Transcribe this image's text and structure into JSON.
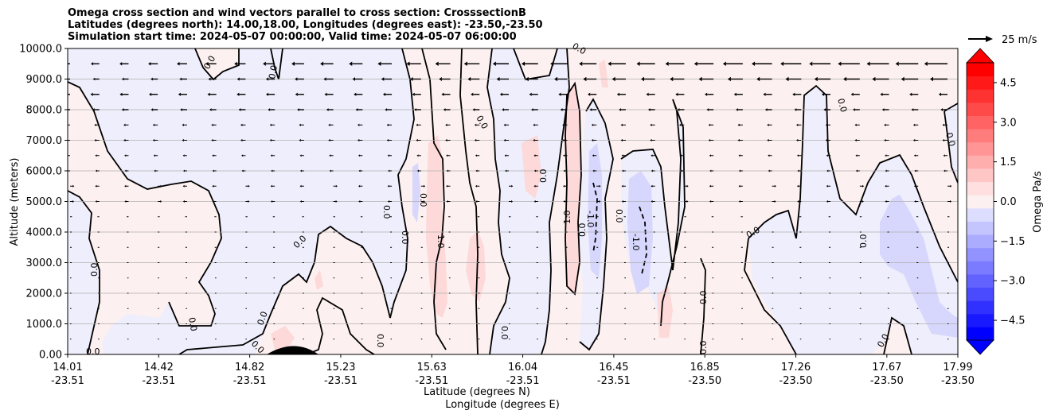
{
  "chart_data": {
    "type": "heatmap",
    "title_lines": [
      "Omega cross section and wind vectors parallel to cross section: CrosssectionB",
      "Latitudes (degrees north): 14.00,18.00, Longitudes (degrees east): -23.50,-23.50",
      "Simulation start time: 2024-05-07 00:00:00, Valid time: 2024-05-07 06:00:00"
    ],
    "ylabel": "Altitude (meters)",
    "xlabel_lat": "Latitude (degrees N)",
    "xlabel_lon": "Longitude (degrees E)",
    "ylim": [
      0,
      10000
    ],
    "yticks": [
      "0.00",
      "1000.0",
      "2000.0",
      "3000.0",
      "4000.0",
      "5000.0",
      "6000.0",
      "7000.0",
      "8000.0",
      "9000.0",
      "10000.0"
    ],
    "ytick_values": [
      0,
      1000,
      2000,
      3000,
      4000,
      5000,
      6000,
      7000,
      8000,
      9000,
      10000
    ],
    "xticks": [
      {
        "lat": "14.01",
        "lon": "-23.51"
      },
      {
        "lat": "14.42",
        "lon": "-23.51"
      },
      {
        "lat": "14.82",
        "lon": "-23.51"
      },
      {
        "lat": "15.23",
        "lon": "-23.51"
      },
      {
        "lat": "15.63",
        "lon": "-23.51"
      },
      {
        "lat": "16.04",
        "lon": "-23.51"
      },
      {
        "lat": "16.45",
        "lon": "-23.51"
      },
      {
        "lat": "16.85",
        "lon": "-23.50"
      },
      {
        "lat": "17.26",
        "lon": "-23.50"
      },
      {
        "lat": "17.67",
        "lon": "-23.50"
      },
      {
        "lat": "17.99",
        "lon": "-23.50"
      }
    ],
    "colorbar": {
      "label": "Omega Pa/s",
      "range": [
        -5.25,
        5.25
      ],
      "ticks": [
        "4.5",
        "3.0",
        "1.5",
        "0.0",
        "−1.5",
        "−3.0",
        "−4.5"
      ],
      "tick_values": [
        4.5,
        3.0,
        1.5,
        0.0,
        -1.5,
        -3.0,
        -4.5
      ],
      "extend": "both"
    },
    "vector_key": {
      "label": "25 m/s"
    },
    "contour_labels": [
      "0.0",
      "1.0",
      "-1.0"
    ],
    "grid": "horizontal",
    "colors": {
      "positive_light": "#fdf0f0",
      "negative_light": "#eeeefc",
      "positive_mid": "#fdd9d9",
      "negative_mid": "#d7d7fd",
      "pos_max": "#ff0000",
      "neg_max": "#0000ff",
      "terrain": "#000000"
    }
  }
}
